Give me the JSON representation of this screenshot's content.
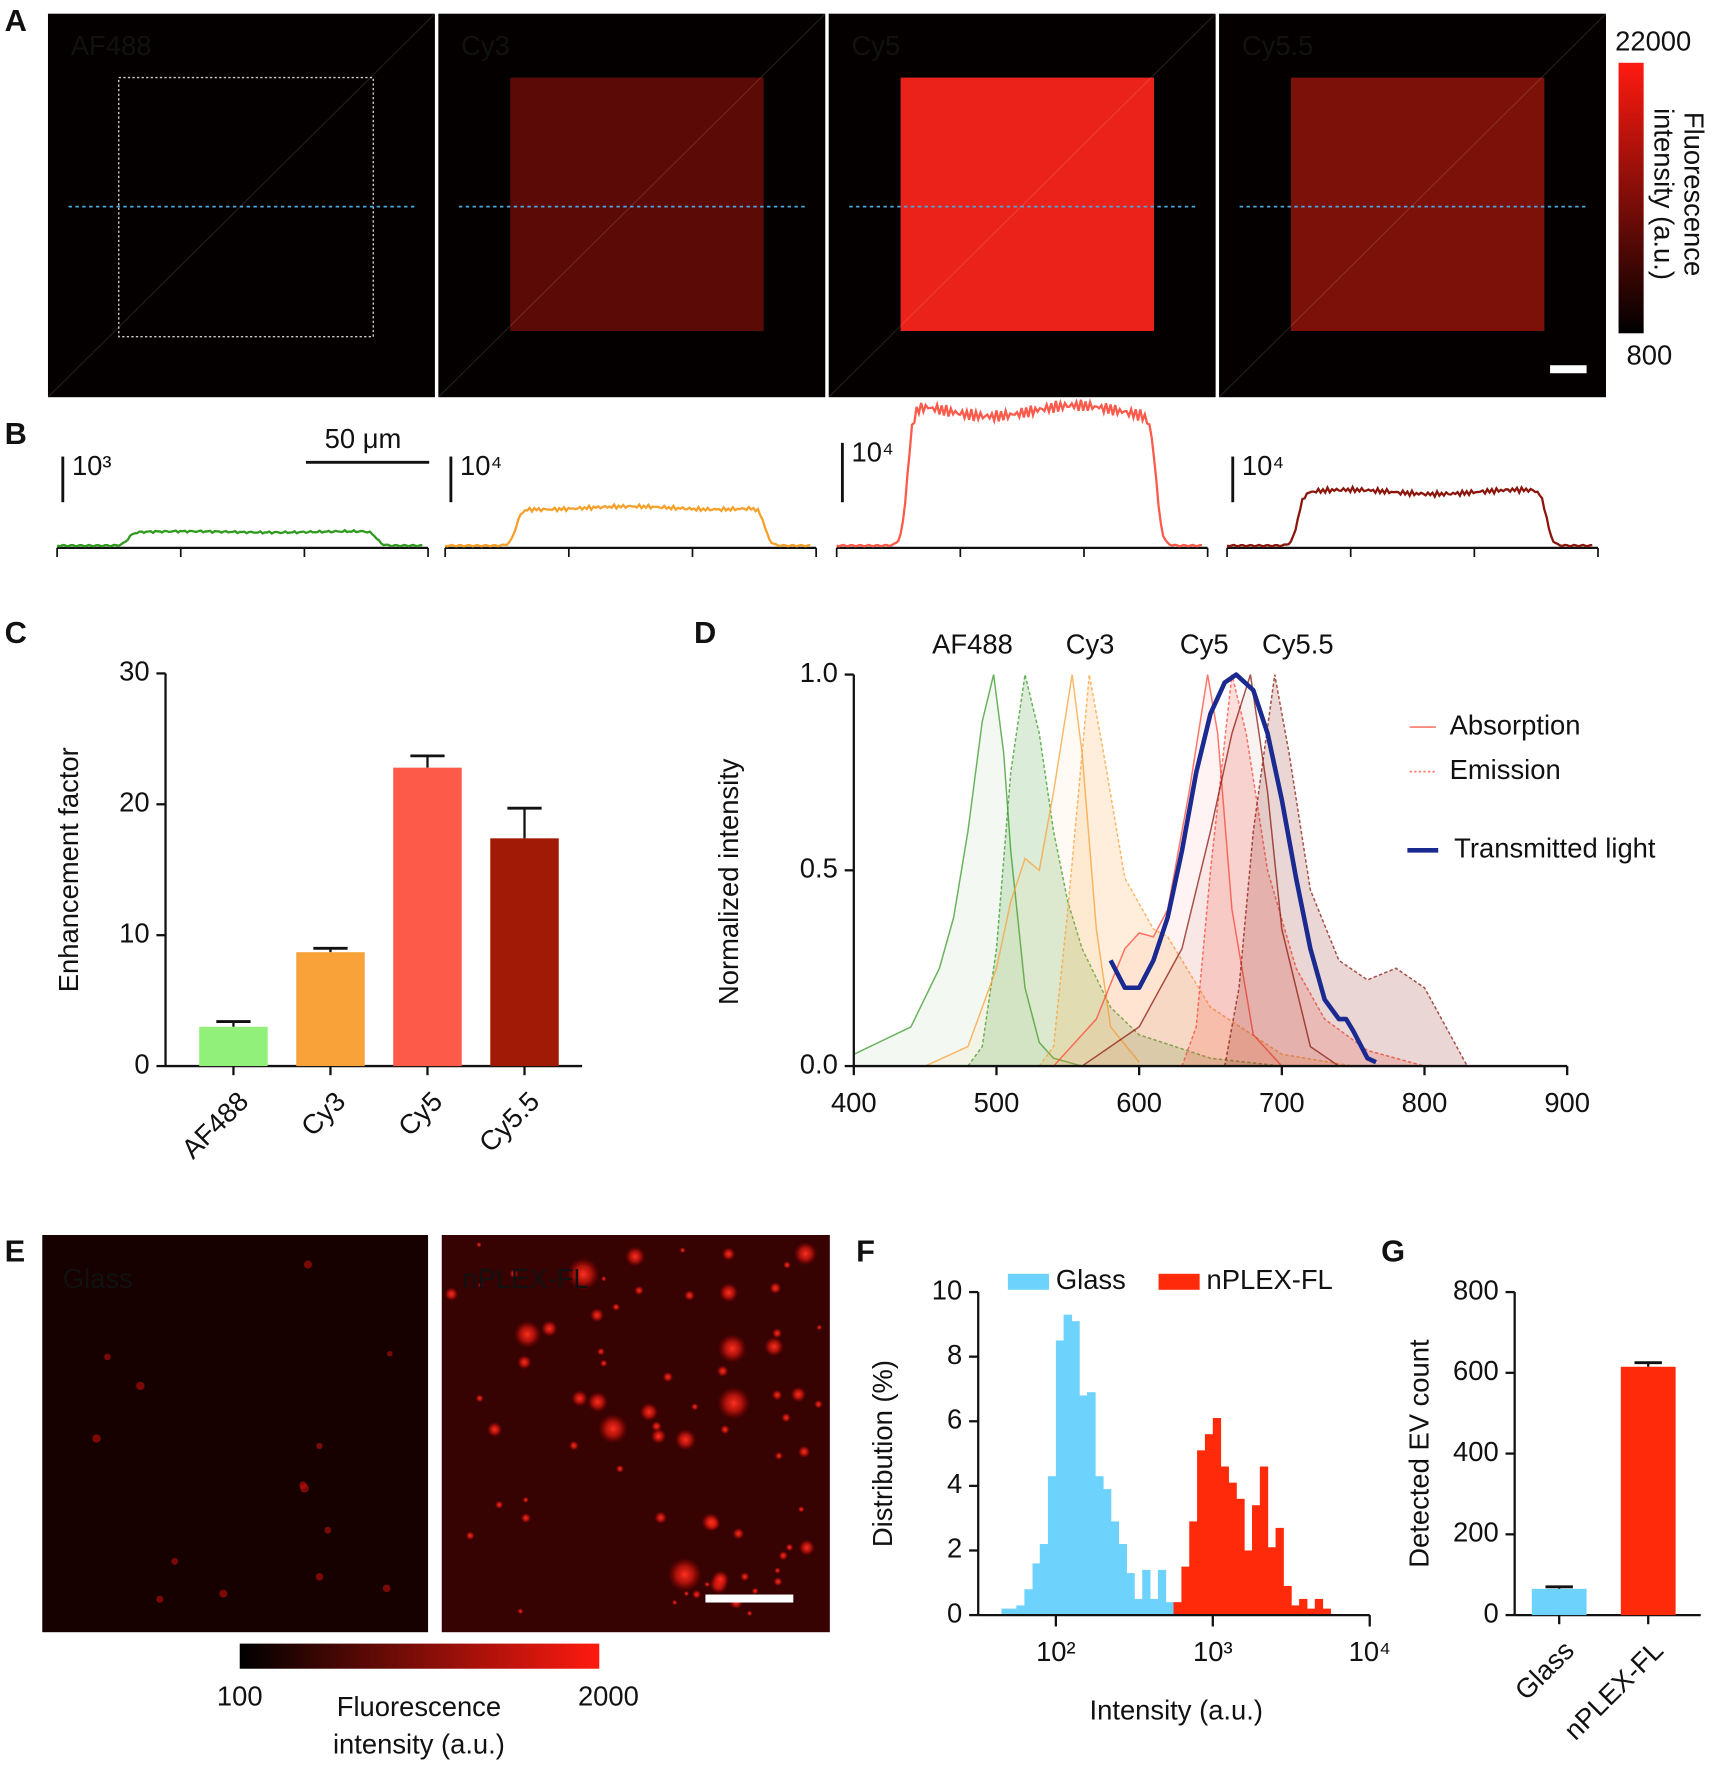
{
  "panel_labels": [
    "A",
    "B",
    "C",
    "D",
    "E",
    "F",
    "G"
  ],
  "panel_a": {
    "images": [
      {
        "label": "AF488",
        "color": "#070000"
      },
      {
        "label": "Cy3",
        "color": "#5c0a06"
      },
      {
        "label": "Cy5",
        "color": "#ea2219"
      },
      {
        "label": "Cy5.5",
        "color": "#7c110a"
      }
    ],
    "colorbar": {
      "range": [
        800,
        22000
      ],
      "label": [
        "Fluorescence",
        "intensity (a.u.)"
      ],
      "colors": [
        "#000000",
        "#ff1a10"
      ]
    }
  },
  "panel_b": {
    "profiles": [
      {
        "scale": "10³",
        "color": "#2e9a1e"
      },
      {
        "scale": "10⁴",
        "color": "#f5a02a"
      },
      {
        "scale": "10⁴",
        "color": "#fc5a4a"
      },
      {
        "scale": "10⁴",
        "color": "#8c160c"
      }
    ],
    "scale_bar": "50 μm"
  },
  "panel_e": {
    "images": [
      {
        "label": "Glass",
        "color": "#160000"
      },
      {
        "label": "nPLEX-FL",
        "color": "#360202"
      }
    ],
    "colorbar": {
      "range": [
        100,
        2000
      ],
      "label": [
        "Fluorescence",
        "intensity (a.u.)"
      ],
      "colors": [
        "#000000",
        "#ff1a10"
      ]
    }
  },
  "chart_data": [
    {
      "type": "bar",
      "ylabel": "Enhancement factor",
      "categories": [
        "AF488",
        "Cy3",
        "Cy5",
        "Cy5.5"
      ],
      "values": [
        3.0,
        8.7,
        22.8,
        17.4
      ],
      "errors": [
        0.4,
        0.3,
        0.9,
        2.3
      ],
      "colors": [
        "#90f07a",
        "#f9a23a",
        "#fe5a4a",
        "#a01a05"
      ],
      "ylim": [
        0,
        30
      ],
      "yticks": [
        0,
        10,
        20,
        30
      ]
    },
    {
      "type": "spectra",
      "ylabel": "Normalized intensity",
      "xlim": [
        400,
        900
      ],
      "xticks": [
        400,
        500,
        600,
        700,
        800,
        900
      ],
      "ylim": [
        0,
        1
      ],
      "yticks": [
        {
          "value": 0,
          "label": "0.0"
        },
        {
          "value": 0.5,
          "label": "0.5"
        },
        {
          "value": 1,
          "label": "1.0"
        }
      ],
      "absorption_label": "Absorption",
      "emission_label": "Emission",
      "legend_color": "#fe7a6a",
      "dyes": [
        {
          "name": "AF488",
          "color": "#3a9a2a",
          "absorption": {
            "x": [
              400,
              440,
              460,
              470,
              480,
              490,
              498,
              505,
              510,
              520,
              530,
              540,
              560
            ],
            "values": [
              0.03,
              0.1,
              0.25,
              0.38,
              0.6,
              0.88,
              1.0,
              0.8,
              0.55,
              0.2,
              0.06,
              0.02,
              0
            ]
          },
          "emission": {
            "x": [
              480,
              490,
              500,
              510,
              520,
              530,
              540,
              550,
              560,
              580,
              600,
              650,
              700
            ],
            "values": [
              0,
              0.05,
              0.3,
              0.75,
              1.0,
              0.85,
              0.6,
              0.42,
              0.3,
              0.15,
              0.08,
              0.02,
              0
            ]
          }
        },
        {
          "name": "Cy3",
          "color": "#f9a23a",
          "absorption": {
            "x": [
              450,
              480,
              500,
              510,
              520,
              530,
              540,
              553,
              560,
              570,
              580,
              600
            ],
            "values": [
              0,
              0.05,
              0.25,
              0.42,
              0.53,
              0.5,
              0.7,
              1.0,
              0.8,
              0.35,
              0.1,
              0.01
            ]
          },
          "emission": {
            "x": [
              530,
              540,
              550,
              565,
              575,
              590,
              610,
              620,
              650,
              700,
              750
            ],
            "values": [
              0,
              0.05,
              0.4,
              1.0,
              0.8,
              0.48,
              0.35,
              0.33,
              0.15,
              0.03,
              0
            ]
          }
        },
        {
          "name": "Cy5",
          "color": "#fe4a3a",
          "absorption": {
            "x": [
              540,
              570,
              590,
              600,
              610,
              620,
              635,
              648,
              655,
              665,
              680,
              700
            ],
            "values": [
              0,
              0.12,
              0.3,
              0.34,
              0.33,
              0.4,
              0.7,
              1.0,
              0.85,
              0.4,
              0.08,
              0
            ]
          },
          "emission": {
            "x": [
              630,
              640,
              650,
              665,
              675,
              690,
              710,
              730,
              760,
              800
            ],
            "values": [
              0,
              0.1,
              0.5,
              1.0,
              0.85,
              0.5,
              0.25,
              0.12,
              0.04,
              0
            ]
          }
        },
        {
          "name": "Cy5.5",
          "color": "#8a1a10",
          "absorption": {
            "x": [
              560,
              600,
              630,
              650,
              665,
              678,
              690,
              700,
              720,
              740
            ],
            "values": [
              0,
              0.1,
              0.3,
              0.6,
              0.85,
              1.0,
              0.7,
              0.35,
              0.05,
              0
            ]
          },
          "emission": {
            "x": [
              660,
              670,
              680,
              695,
              705,
              720,
              740,
              760,
              780,
              800,
              830
            ],
            "values": [
              0,
              0.2,
              0.6,
              1.0,
              0.8,
              0.45,
              0.27,
              0.22,
              0.25,
              0.2,
              0
            ]
          }
        }
      ],
      "transmitted": {
        "name": "Transmitted light",
        "color": "#1a2a90",
        "x": [
          580,
          590,
          600,
          610,
          620,
          630,
          640,
          650,
          660,
          668,
          680,
          690,
          700,
          710,
          720,
          730,
          740,
          745,
          750,
          760,
          766
        ],
        "values": [
          0.27,
          0.2,
          0.2,
          0.27,
          0.38,
          0.55,
          0.75,
          0.9,
          0.98,
          1.0,
          0.96,
          0.85,
          0.68,
          0.48,
          0.3,
          0.17,
          0.12,
          0.12,
          0.09,
          0.02,
          0.01
        ]
      }
    },
    {
      "type": "histogram",
      "xlabel": "Intensity (a.u.)",
      "ylabel": "Distribution (%)",
      "log_x": true,
      "xlim": [
        32,
        10000
      ],
      "xticks": [
        {
          "value": 100,
          "label": "10²"
        },
        {
          "value": 1000,
          "label": "10³"
        },
        {
          "value": 10000,
          "label": "10⁴"
        }
      ],
      "ylim": [
        0,
        10
      ],
      "yticks": [
        0,
        2,
        4,
        6,
        8,
        10
      ],
      "series": [
        {
          "name": "Glass",
          "color": "#6dd3fc",
          "bins": [
            45,
            50,
            56,
            63,
            71,
            79,
            89,
            100,
            112,
            126,
            141,
            158,
            178,
            200,
            224,
            251,
            282,
            316,
            355,
            398,
            447,
            501,
            562
          ],
          "values": [
            0.2,
            0.2,
            0.3,
            0.8,
            1.6,
            2.2,
            4.3,
            8.5,
            9.3,
            9.1,
            6.8,
            6.9,
            4.3,
            3.9,
            2.9,
            2.2,
            1.3,
            0.5,
            1.4,
            0.5,
            1.4,
            0.4
          ]
        },
        {
          "name": "nPLEX-FL",
          "color": "#fe2a0a",
          "bins": [
            562,
            631,
            708,
            794,
            891,
            1000,
            1122,
            1259,
            1413,
            1585,
            1778,
            1995,
            2239,
            2512,
            2818,
            3162,
            3548,
            3981,
            4467,
            5012,
            5623
          ],
          "values": [
            0.4,
            1.5,
            2.9,
            5.1,
            5.6,
            6.1,
            4.6,
            4.1,
            3.6,
            2.0,
            3.4,
            4.6,
            2.1,
            2.7,
            0.9,
            0.3,
            0.5,
            0.2,
            0.5,
            0.2
          ]
        }
      ]
    },
    {
      "type": "bar",
      "ylabel": "Detected EV count",
      "categories": [
        "Glass",
        "nPLEX-FL"
      ],
      "values": [
        65,
        615
      ],
      "errors": [
        5,
        10
      ],
      "colors": [
        "#6dd3fc",
        "#fe2a0a"
      ],
      "ylim": [
        0,
        800
      ],
      "yticks": [
        0,
        200,
        400,
        600,
        800
      ]
    }
  ]
}
